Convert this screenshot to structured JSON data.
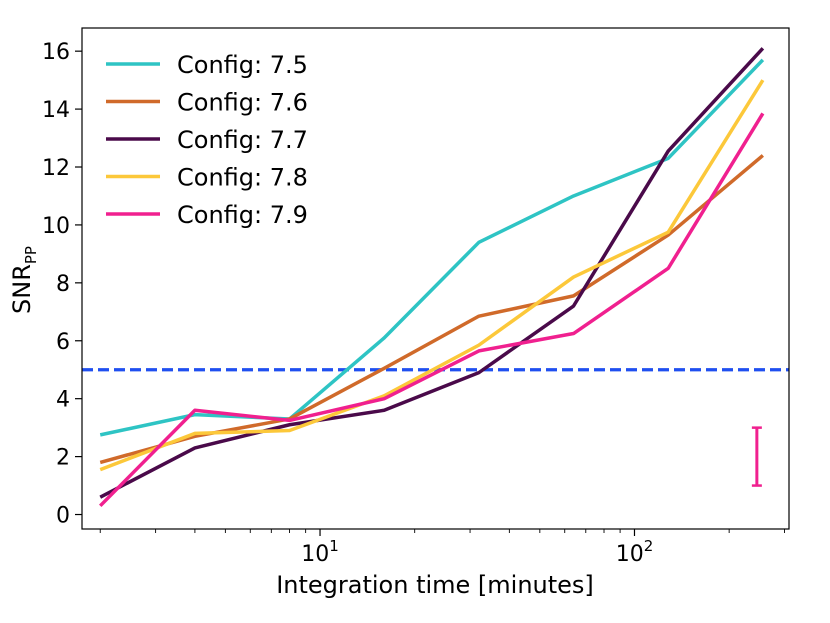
{
  "chart_data": {
    "type": "line",
    "title": "",
    "xlabel": "Integration time [minutes]",
    "ylabel_main": "SNR",
    "ylabel_sub": "PP",
    "xscale": "log",
    "xlim": [
      1.75,
      310
    ],
    "ylim": [
      -0.5,
      16.8
    ],
    "x_ticks": [
      {
        "value": 10,
        "base": "10",
        "exp": "1"
      },
      {
        "value": 100,
        "base": "10",
        "exp": "2"
      }
    ],
    "y_ticks": [
      0,
      2,
      4,
      6,
      8,
      10,
      12,
      14,
      16
    ],
    "y_tick_labels": [
      "0",
      "2",
      "4",
      "6",
      "8",
      "10",
      "12",
      "14",
      "16"
    ],
    "x": [
      2,
      4,
      8,
      16,
      32,
      64,
      128,
      256
    ],
    "series": [
      {
        "name": "Config: 7.5",
        "color": "#2ec4c4",
        "values": [
          2.75,
          3.45,
          3.3,
          6.1,
          9.4,
          11.0,
          12.3,
          15.7
        ]
      },
      {
        "name": "Config: 7.6",
        "color": "#d06a2a",
        "values": [
          1.8,
          2.7,
          3.3,
          5.05,
          6.85,
          7.55,
          9.65,
          12.4
        ]
      },
      {
        "name": "Config: 7.7",
        "color": "#4a0a4a",
        "values": [
          0.6,
          2.3,
          3.1,
          3.6,
          4.9,
          7.2,
          12.55,
          16.1
        ]
      },
      {
        "name": "Config: 7.8",
        "color": "#fcc83a",
        "values": [
          1.55,
          2.8,
          2.9,
          4.1,
          5.85,
          8.2,
          9.75,
          15.0
        ]
      },
      {
        "name": "Config: 7.9",
        "color": "#f0208f",
        "values": [
          0.3,
          3.6,
          3.25,
          4.0,
          5.65,
          6.25,
          8.5,
          13.85
        ]
      }
    ],
    "threshold": {
      "value": 5,
      "color": "#1f4ff0"
    },
    "error_bar": {
      "x": 256,
      "low": 1.0,
      "high": 3.0,
      "color": "#f0208f"
    },
    "legend_position": "top-left"
  }
}
